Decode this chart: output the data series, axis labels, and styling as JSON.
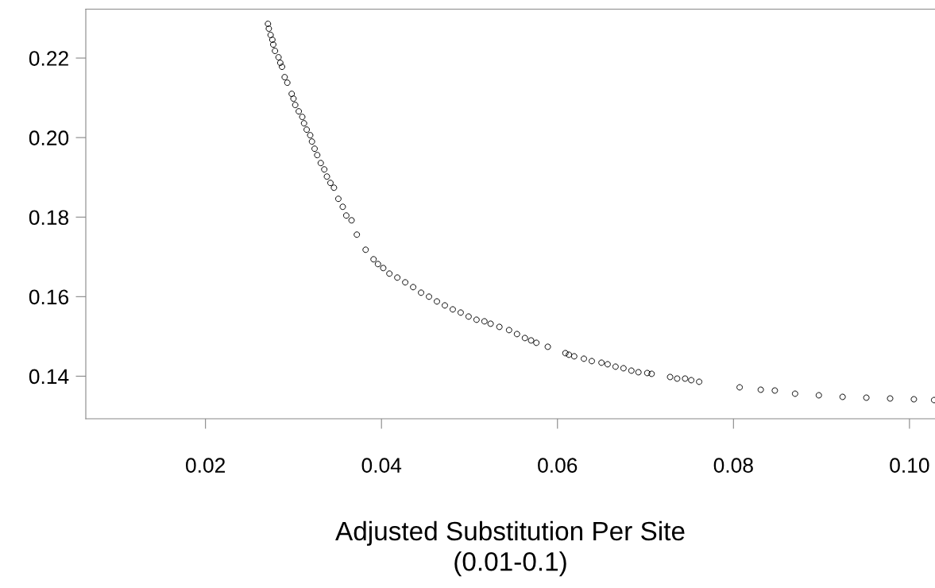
{
  "chart_data": {
    "type": "scatter",
    "xlabel": "Adjusted Substitution Per Site\n(0.01-0.1)",
    "x": [
      0.0271,
      0.0272,
      0.0274,
      0.0276,
      0.0277,
      0.0279,
      0.0283,
      0.0285,
      0.0287,
      0.029,
      0.0293,
      0.0298,
      0.03,
      0.0302,
      0.0306,
      0.031,
      0.0312,
      0.0315,
      0.0319,
      0.0321,
      0.0324,
      0.0327,
      0.0331,
      0.0335,
      0.0338,
      0.0342,
      0.0346,
      0.0351,
      0.0356,
      0.036,
      0.0366,
      0.0372,
      0.0382,
      0.0391,
      0.0396,
      0.0402,
      0.0409,
      0.0418,
      0.0427,
      0.0436,
      0.0445,
      0.0454,
      0.0463,
      0.0472,
      0.0481,
      0.049,
      0.0499,
      0.0508,
      0.0517,
      0.0524,
      0.0534,
      0.0545,
      0.0554,
      0.0563,
      0.057,
      0.0576,
      0.0589,
      0.0609,
      0.0613,
      0.0619,
      0.063,
      0.0639,
      0.065,
      0.0657,
      0.0666,
      0.0675,
      0.0684,
      0.0692,
      0.0702,
      0.0707,
      0.0728,
      0.0736,
      0.0745,
      0.0752,
      0.0761,
      0.0807,
      0.0831,
      0.0847,
      0.087,
      0.0897,
      0.0924,
      0.0951,
      0.0978,
      0.1005,
      0.1028
    ],
    "values": [
      0.2286,
      0.2274,
      0.2258,
      0.2246,
      0.2234,
      0.2218,
      0.2202,
      0.2188,
      0.2178,
      0.2152,
      0.2138,
      0.211,
      0.2098,
      0.2082,
      0.2066,
      0.2052,
      0.2036,
      0.202,
      0.2006,
      0.199,
      0.1972,
      0.1956,
      0.1936,
      0.192,
      0.1902,
      0.1886,
      0.1874,
      0.1846,
      0.1826,
      0.1804,
      0.1792,
      0.1756,
      0.1718,
      0.1694,
      0.1682,
      0.1672,
      0.1658,
      0.1648,
      0.1636,
      0.1624,
      0.161,
      0.16,
      0.1588,
      0.1578,
      0.1568,
      0.156,
      0.155,
      0.1542,
      0.1538,
      0.1532,
      0.1524,
      0.1516,
      0.1506,
      0.1496,
      0.149,
      0.1484,
      0.1474,
      0.1458,
      0.1454,
      0.145,
      0.1444,
      0.1438,
      0.1434,
      0.143,
      0.1424,
      0.142,
      0.1414,
      0.141,
      0.1408,
      0.1406,
      0.1398,
      0.1394,
      0.1394,
      0.139,
      0.1386,
      0.1372,
      0.1366,
      0.1364,
      0.1356,
      0.1352,
      0.1348,
      0.1346,
      0.1344,
      0.1342,
      0.134
    ],
    "color": "#000000",
    "marker": "circle",
    "grid": false,
    "xlim": [
      0.0064,
      0.1029
    ],
    "ylim": [
      0.1293,
      0.2323
    ],
    "xticks": [
      {
        "value": 0.02,
        "label": "0.02"
      },
      {
        "value": 0.04,
        "label": "0.04"
      },
      {
        "value": 0.06,
        "label": "0.06"
      },
      {
        "value": 0.08,
        "label": "0.08"
      },
      {
        "value": 0.1,
        "label": "0.10"
      }
    ],
    "yticks": [
      {
        "value": 0.14,
        "label": "0.14"
      },
      {
        "value": 0.16,
        "label": "0.16"
      },
      {
        "value": 0.18,
        "label": "0.18"
      },
      {
        "value": 0.2,
        "label": "0.20"
      },
      {
        "value": 0.22,
        "label": "0.22"
      }
    ]
  }
}
